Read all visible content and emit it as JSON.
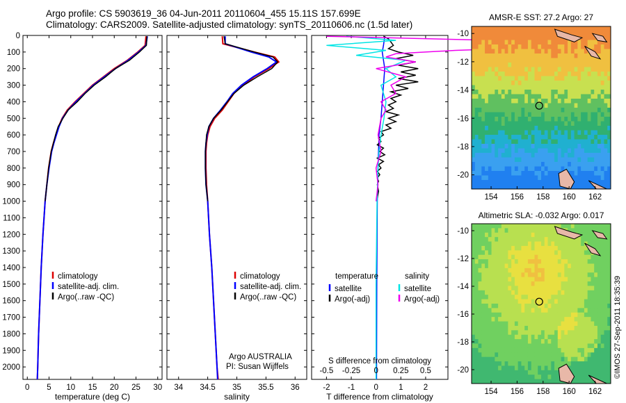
{
  "header": {
    "line1": "Argo profile: CS 5903619_36 04-Jun-2011 20110604_455 15.11S 157.699E",
    "line2": "Climatology: CARS2009. Satellite-adjusted climatology: synTS_20110606.nc (1.5d later)"
  },
  "credit": "©IMOS 27-Sep-2011 18:35:39",
  "depth_axis": {
    "ticks": [
      0,
      100,
      200,
      300,
      400,
      500,
      600,
      700,
      800,
      900,
      1000,
      1100,
      1200,
      1300,
      1400,
      1500,
      1600,
      1700,
      1800,
      1900,
      2000
    ],
    "ylim": [
      0,
      2075
    ]
  },
  "colors": {
    "climatology": "#dd0000",
    "satellite": "#0000ff",
    "argo": "#000000",
    "salinity_satellite": "#00e5e5",
    "salinity_argo": "#ee00ee"
  },
  "chart_data": [
    {
      "type": "line",
      "name": "temperature-profile",
      "xlabel": "temperature (deg C)",
      "ylabel": "depth",
      "xlim": [
        -1,
        31
      ],
      "xticks": [
        0,
        5,
        10,
        15,
        20,
        25,
        30
      ],
      "legend": [
        "climatology",
        "satellite-adj. clim.",
        "Argo(..raw -QC)"
      ],
      "series": [
        {
          "name": "climatology",
          "depth": [
            5,
            60,
            100,
            150,
            200,
            250,
            300,
            350,
            400,
            450,
            500,
            550,
            600,
            650,
            700,
            800,
            900,
            1000,
            1200,
            1400,
            1600,
            1800,
            2000,
            2075
          ],
          "values": [
            27.3,
            27.1,
            25.4,
            23.0,
            20.0,
            17.5,
            15.0,
            13.0,
            11.0,
            9.2,
            8.0,
            7.2,
            6.6,
            6.0,
            5.5,
            4.9,
            4.5,
            4.1,
            3.6,
            3.2,
            2.9,
            2.6,
            2.4,
            2.3
          ]
        },
        {
          "name": "satellite-adj. clim.",
          "depth": [
            5,
            60,
            100,
            150,
            200,
            250,
            300,
            350,
            400,
            450,
            500,
            550,
            600,
            650,
            700,
            800,
            900,
            1000,
            1200,
            1400,
            1600,
            1800,
            2000,
            2075
          ],
          "values": [
            27.6,
            27.3,
            25.6,
            23.2,
            20.3,
            17.7,
            15.2,
            13.2,
            11.2,
            9.4,
            8.1,
            7.3,
            6.7,
            6.1,
            5.6,
            5.0,
            4.5,
            4.1,
            3.6,
            3.2,
            2.9,
            2.6,
            2.4,
            2.3
          ]
        },
        {
          "name": "Argo",
          "depth": [
            5,
            60,
            100,
            150,
            200,
            250,
            300,
            350,
            400,
            450,
            500,
            550,
            600,
            650,
            700,
            800,
            900,
            1000
          ],
          "values": [
            27.5,
            27.4,
            25.8,
            23.5,
            20.3,
            18.0,
            15.4,
            13.3,
            11.5,
            9.4,
            8.2,
            7.1,
            6.5,
            6.0,
            5.5,
            4.9,
            4.5,
            4.1
          ]
        }
      ]
    },
    {
      "type": "line",
      "name": "salinity-profile",
      "xlabel": "salinity",
      "ylabel": "depth",
      "xlim": [
        33.8,
        36.2
      ],
      "xticks": [
        34,
        34.5,
        35,
        35.5,
        36
      ],
      "legend": [
        "climatology",
        "satellite-adj. clim.",
        "Argo(..raw -QC)"
      ],
      "annotation": [
        "Argo AUSTRALIA",
        "PI: Susan Wijffels"
      ],
      "series": [
        {
          "name": "climatology",
          "depth": [
            5,
            50,
            100,
            130,
            160,
            200,
            250,
            300,
            350,
            400,
            450,
            500,
            550,
            600,
            650,
            700,
            800,
            900,
            1000,
            1200,
            1400,
            1600,
            1800,
            2000,
            2075
          ],
          "values": [
            34.75,
            34.76,
            35.3,
            35.65,
            35.72,
            35.55,
            35.3,
            35.1,
            34.95,
            34.85,
            34.75,
            34.62,
            34.54,
            34.5,
            34.48,
            34.47,
            34.47,
            34.48,
            34.5,
            34.53,
            34.57,
            34.6,
            34.63,
            34.66,
            34.68
          ]
        },
        {
          "name": "satellite-adj. clim.",
          "depth": [
            5,
            50,
            100,
            130,
            160,
            200,
            250,
            300,
            350,
            400,
            450,
            500,
            550,
            600,
            650,
            700,
            800,
            900,
            1000,
            1200,
            1400,
            1600,
            1800,
            2000,
            2075
          ],
          "values": [
            34.8,
            34.8,
            35.25,
            35.55,
            35.68,
            35.52,
            35.28,
            35.08,
            34.93,
            34.83,
            34.72,
            34.6,
            34.52,
            34.49,
            34.47,
            34.46,
            34.46,
            34.47,
            34.5,
            34.53,
            34.57,
            34.6,
            34.63,
            34.66,
            34.67
          ]
        },
        {
          "name": "Argo",
          "depth": [
            5,
            50,
            100,
            130,
            160,
            200,
            250,
            300,
            350,
            400,
            450,
            500,
            550,
            600,
            650,
            700,
            800,
            900,
            1000
          ],
          "values": [
            34.78,
            34.8,
            35.3,
            35.62,
            35.7,
            35.6,
            35.35,
            35.12,
            34.95,
            34.84,
            34.73,
            34.6,
            34.52,
            34.48,
            34.47,
            34.46,
            34.46,
            34.47,
            34.5
          ]
        }
      ]
    },
    {
      "type": "line",
      "name": "difference-profile",
      "xlabel": "T difference from climatology",
      "xlabel_top": "S difference from climatology",
      "xlim": [
        -2.6,
        2.9
      ],
      "xticks": [
        -2,
        -1,
        0,
        1,
        2
      ],
      "s_ticks": [
        -0.5,
        -0.25,
        0,
        0.25,
        0.5
      ],
      "legend_temperature": {
        "title": "temperature",
        "items": [
          "satellite",
          "Argo(-adj)"
        ]
      },
      "legend_salinity": {
        "title": "salinity",
        "items": [
          "satellite",
          "Argo(-adj)"
        ]
      },
      "series": [
        {
          "name": "temperature satellite",
          "depth": [
            5,
            60,
            100,
            200,
            300,
            400,
            500,
            600,
            700,
            800,
            1000,
            1500,
            2075
          ],
          "values": [
            0.35,
            0.3,
            0.25,
            0.35,
            0.3,
            0.25,
            0.2,
            0.12,
            0.1,
            0.08,
            0.05,
            0.03,
            0.02
          ]
        },
        {
          "name": "temperature Argo(-adj)",
          "depth": [
            5,
            20,
            40,
            60,
            80,
            100,
            120,
            140,
            160,
            180,
            200,
            220,
            240,
            260,
            280,
            300,
            320,
            340,
            360,
            380,
            400,
            420,
            440,
            460,
            480,
            500,
            520,
            540,
            560,
            580,
            600,
            620,
            640,
            660,
            680,
            700,
            720,
            740,
            760,
            780,
            800,
            820,
            840,
            860,
            880,
            900,
            940,
            980,
            1000
          ],
          "values": [
            0.3,
            0.5,
            0.6,
            0.7,
            0.5,
            0.9,
            1.5,
            0.8,
            1.6,
            0.9,
            1.7,
            1.0,
            1.6,
            0.9,
            1.7,
            0.8,
            1.3,
            0.6,
            1.0,
            0.6,
            0.8,
            0.5,
            0.7,
            0.4,
            0.9,
            0.5,
            0.8,
            0.4,
            0.6,
            0.2,
            0.3,
            0.1,
            0.2,
            0.05,
            0.3,
            0.15,
            0.35,
            0.05,
            0.3,
            0.1,
            0.2,
            0.05,
            0.15,
            0.05,
            0.1,
            0.05,
            0.1,
            0.05,
            0.0
          ]
        },
        {
          "name": "salinity satellite",
          "depth": [
            5,
            30,
            60,
            90,
            120,
            150,
            200,
            250,
            300,
            400,
            500,
            600,
            700,
            800,
            1000,
            1500,
            2075
          ],
          "values": [
            -0.3,
            0.2,
            -0.5,
            0.1,
            -0.2,
            0.3,
            0.1,
            0.2,
            0.05,
            0.1,
            0.08,
            0.05,
            0.03,
            0.02,
            0.01,
            0.0,
            0.0
          ]
        },
        {
          "name": "salinity Argo(-adj)",
          "depth": [
            5,
            30,
            60,
            90,
            110,
            130,
            160,
            200,
            250,
            300,
            350,
            400,
            450,
            500,
            600,
            700,
            800,
            900,
            1000
          ],
          "values": [
            -0.5,
            1.2,
            2.3,
            0.8,
            0.2,
            0.1,
            0.4,
            0.0,
            0.3,
            0.15,
            0.2,
            0.05,
            0.1,
            0.05,
            0.02,
            0.05,
            0.0,
            0.02,
            0.0
          ]
        }
      ]
    },
    {
      "type": "heatmap",
      "name": "sst-map",
      "title": "AMSR-E SST: 27.2  Argo: 27",
      "xticks": [
        154,
        156,
        158,
        160,
        162
      ],
      "yticks": [
        -10,
        -12,
        -14,
        -16,
        -18,
        -20
      ],
      "xlim": [
        152.5,
        163.2
      ],
      "ylim": [
        -21,
        -9.5
      ],
      "marker": {
        "lon": 157.7,
        "lat": -15.11
      }
    },
    {
      "type": "heatmap",
      "name": "sla-map",
      "title": "Altimetric SLA: -0.032  Argo: 0.017",
      "xticks": [
        154,
        156,
        158,
        160,
        162
      ],
      "yticks": [
        -10,
        -12,
        -14,
        -16,
        -18,
        -20
      ],
      "xlim": [
        152.5,
        163.2
      ],
      "ylim": [
        -21,
        -9.5
      ],
      "marker": {
        "lon": 157.7,
        "lat": -15.11
      }
    }
  ]
}
